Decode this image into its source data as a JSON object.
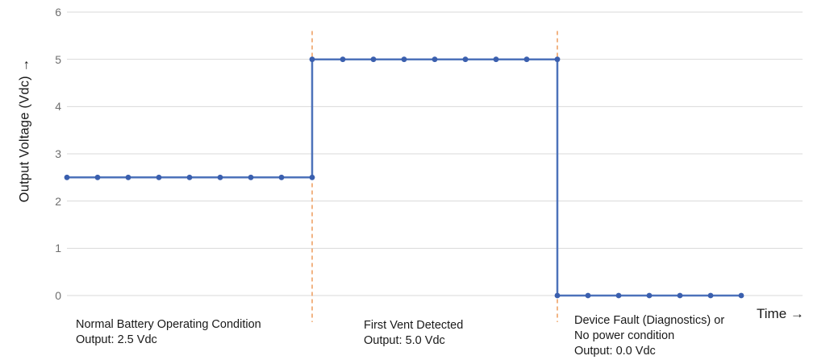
{
  "chart_data": {
    "type": "line",
    "title": "",
    "xlabel": "Time →",
    "ylabel": "Output Voltage (Vdc) →",
    "xlim": [
      0,
      24
    ],
    "ylim": [
      0,
      6
    ],
    "yticks": [
      0,
      1,
      2,
      3,
      4,
      5,
      6
    ],
    "xticks": [],
    "grid": "horizontal",
    "legend": "none",
    "series": [
      {
        "name": "Output Voltage (Vdc)",
        "color": "#4d72ba",
        "marker": "circle",
        "marker_color": "#3a5fae",
        "points": [
          [
            0,
            2.5
          ],
          [
            1,
            2.5
          ],
          [
            2,
            2.5
          ],
          [
            3,
            2.5
          ],
          [
            4,
            2.5
          ],
          [
            5,
            2.5
          ],
          [
            6,
            2.5
          ],
          [
            7,
            2.5
          ],
          [
            8,
            2.5
          ],
          [
            8,
            5.0
          ],
          [
            9,
            5.0
          ],
          [
            10,
            5.0
          ],
          [
            11,
            5.0
          ],
          [
            12,
            5.0
          ],
          [
            13,
            5.0
          ],
          [
            14,
            5.0
          ],
          [
            15,
            5.0
          ],
          [
            16,
            5.0
          ],
          [
            16,
            0.0
          ],
          [
            17,
            0.0
          ],
          [
            18,
            0.0
          ],
          [
            19,
            0.0
          ],
          [
            20,
            0.0
          ],
          [
            21,
            0.0
          ],
          [
            22,
            0.0
          ]
        ]
      }
    ],
    "event_lines": [
      {
        "x": 8,
        "style": "dashed",
        "color": "#eea266",
        "y_from": -0.56,
        "y_to": 5.6
      },
      {
        "x": 16,
        "style": "dashed",
        "color": "#eea266",
        "y_from": -0.56,
        "y_to": 5.6
      }
    ],
    "annotations": [
      {
        "text": "Normal Battery Operating Condition\nOutput: 2.5 Vdc"
      },
      {
        "text": "First Vent Detected\nOutput: 5.0 Vdc"
      },
      {
        "text": "Device Fault (Diagnostics) or\nNo power condition\nOutput: 0.0 Vdc"
      }
    ]
  },
  "colors": {
    "background": "#ffffff",
    "grid": "#dadada",
    "tick_text": "#6e6e6e",
    "annotation_text": "#191919",
    "series_line": "#4d72ba",
    "series_marker": "#3a5fae",
    "event_line": "#eea266"
  }
}
